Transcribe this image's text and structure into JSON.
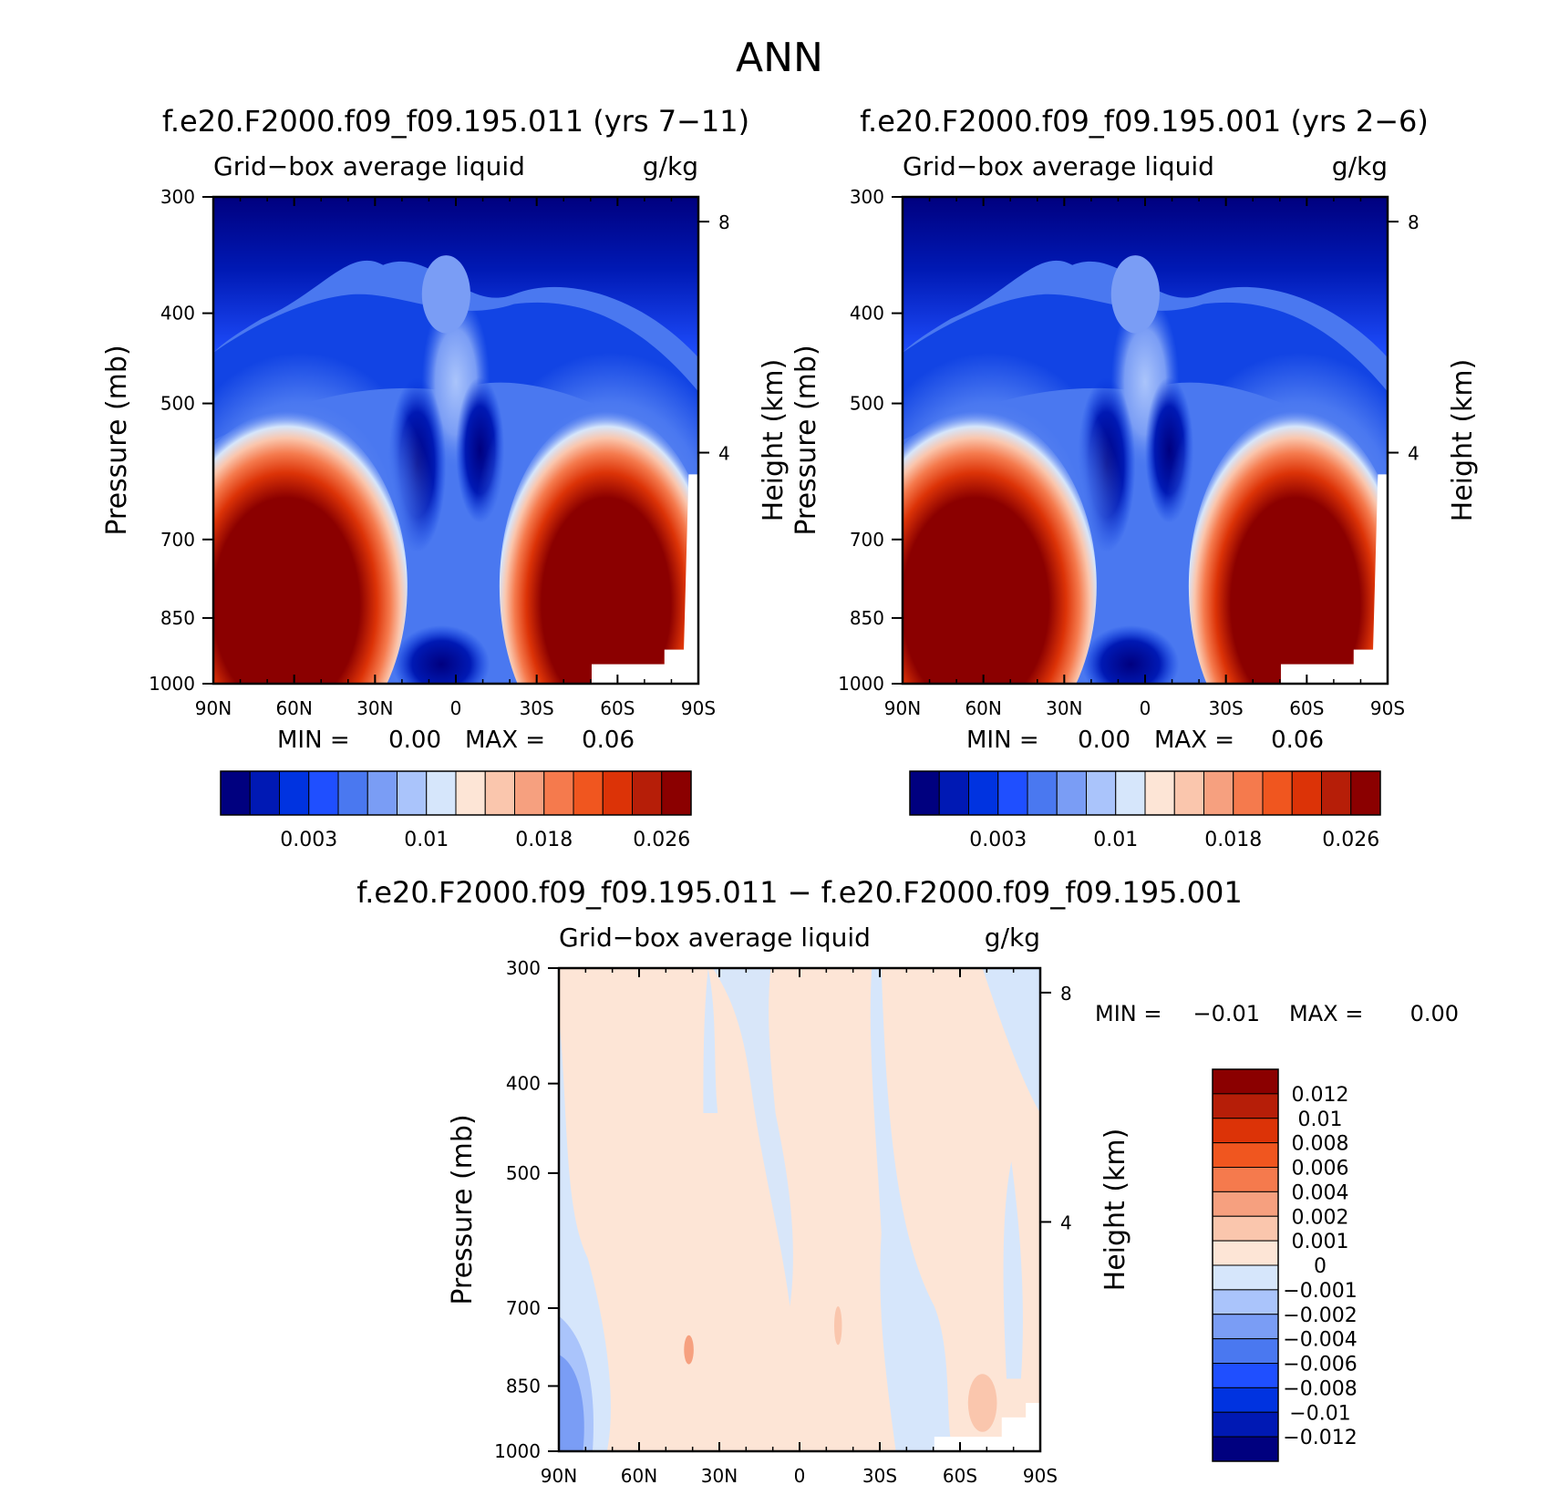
{
  "title": "ANN",
  "colors": {
    "abs_scale": [
      "#00007f",
      "#0019b4",
      "#0033e0",
      "#1f4fff",
      "#4a78f0",
      "#7a9df5",
      "#aac4fb",
      "#d6e6fb",
      "#fde5d6",
      "#fac6ad",
      "#f6a07f",
      "#f57a4d",
      "#f0561f",
      "#dc3307",
      "#b61e08",
      "#8b0000"
    ],
    "diff_scale": [
      "#00007f",
      "#0019b4",
      "#0033e0",
      "#1f4fff",
      "#4a78f0",
      "#7a9df5",
      "#aac4fb",
      "#d6e6fb",
      "#fde5d6",
      "#fac6ad",
      "#f6a07f",
      "#f57a4d",
      "#f0561f",
      "#dc3307",
      "#b61e08",
      "#8b0000"
    ]
  },
  "chart_data": [
    {
      "type": "heatmap",
      "title": "f.e20.F2000.f09_f09.195.011 (yrs 7−11)",
      "variable": "Grid−box average liquid",
      "units": "g/kg",
      "ylabel": "Pressure (mb)",
      "ylabel_right": "Height (km)",
      "x_ticks": [
        "90N",
        "60N",
        "30N",
        "0",
        "30S",
        "60S",
        "90S"
      ],
      "y_ticks": [
        "300",
        "400",
        "500",
        "700",
        "850",
        "1000"
      ],
      "y_right_ticks": [
        "8",
        "4"
      ],
      "min_label": "MIN =",
      "min_value": "0.00",
      "max_label": "MAX =",
      "max_value": "0.06",
      "colorbar_labels": [
        "0.003",
        "0.01",
        "0.018",
        "0.026"
      ]
    },
    {
      "type": "heatmap",
      "title": "f.e20.F2000.f09_f09.195.001 (yrs 2−6)",
      "variable": "Grid−box average liquid",
      "units": "g/kg",
      "ylabel": "Pressure (mb)",
      "ylabel_right": "Height (km)",
      "x_ticks": [
        "90N",
        "60N",
        "30N",
        "0",
        "30S",
        "60S",
        "90S"
      ],
      "y_ticks": [
        "300",
        "400",
        "500",
        "700",
        "850",
        "1000"
      ],
      "y_right_ticks": [
        "8",
        "4"
      ],
      "min_label": "MIN =",
      "min_value": "0.00",
      "max_label": "MAX =",
      "max_value": "0.06",
      "colorbar_labels": [
        "0.003",
        "0.01",
        "0.018",
        "0.026"
      ]
    },
    {
      "type": "heatmap",
      "title": "f.e20.F2000.f09_f09.195.011 − f.e20.F2000.f09_f09.195.001",
      "variable": "Grid−box average liquid",
      "units": "g/kg",
      "ylabel": "Pressure (mb)",
      "ylabel_right": "Height (km)",
      "x_ticks": [
        "90N",
        "60N",
        "30N",
        "0",
        "30S",
        "60S",
        "90S"
      ],
      "y_ticks": [
        "300",
        "400",
        "500",
        "700",
        "850",
        "1000"
      ],
      "y_right_ticks": [
        "8",
        "4"
      ],
      "min_label": "MIN =",
      "min_value": "−0.01",
      "max_label": "MAX =",
      "max_value": "0.00",
      "colorbar_labels": [
        "0.012",
        "0.01",
        "0.008",
        "0.006",
        "0.004",
        "0.002",
        "0.001",
        "0",
        "−0.001",
        "−0.002",
        "−0.004",
        "−0.006",
        "−0.008",
        "−0.01",
        "−0.012"
      ]
    }
  ]
}
